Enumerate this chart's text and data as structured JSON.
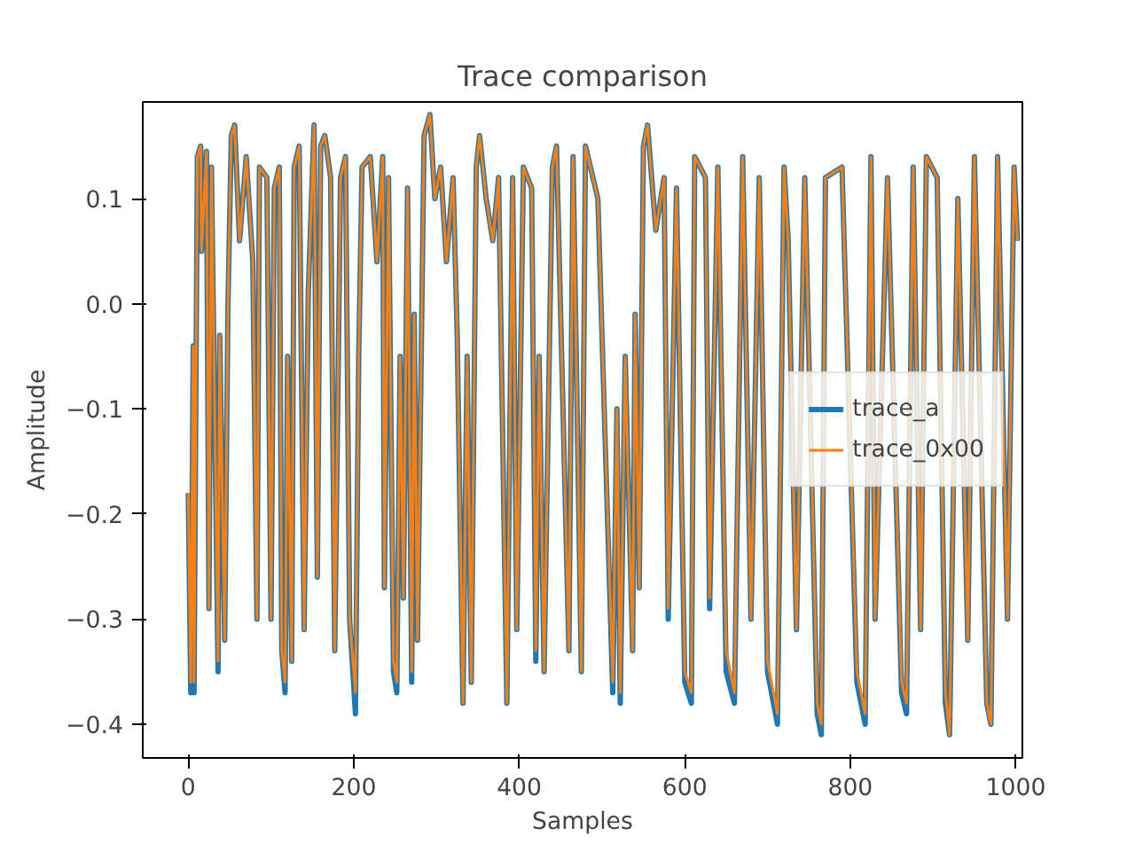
{
  "chart_data": {
    "type": "line",
    "title": "Trace comparison",
    "xlabel": "Samples",
    "ylabel": "Amplitude",
    "x": [
      0,
      3,
      6,
      7,
      11,
      15,
      16,
      22,
      25,
      28,
      36,
      38,
      44,
      48,
      52,
      56,
      62,
      70,
      78,
      83,
      86,
      95,
      100,
      104,
      110,
      113,
      117,
      120,
      125,
      128,
      134,
      140,
      145,
      152,
      156,
      160,
      165,
      172,
      177,
      184,
      190,
      195,
      202,
      206,
      210,
      220,
      228,
      235,
      237,
      242,
      248,
      252,
      256,
      260,
      265,
      270,
      273,
      277,
      285,
      292,
      298,
      305,
      312,
      320,
      325,
      332,
      337,
      342,
      348,
      352,
      360,
      368,
      375,
      385,
      392,
      397,
      405,
      415,
      420,
      424,
      430,
      440,
      445,
      460,
      465,
      475,
      480,
      495,
      513,
      518,
      522,
      528,
      537,
      540,
      545,
      550,
      555,
      565,
      575,
      580,
      590,
      600,
      608,
      612,
      625,
      630,
      640,
      650,
      660,
      670,
      680,
      690,
      700,
      712,
      720,
      725,
      735,
      745,
      760,
      765,
      770,
      790,
      808,
      818,
      825,
      830,
      845,
      862,
      868,
      876,
      885,
      892,
      905,
      915,
      920,
      930,
      942,
      950,
      965,
      970,
      978,
      990,
      998,
      1002
    ],
    "series": [
      {
        "name": "trace_a",
        "color": "#1f77b4",
        "values": [
          -0.18,
          -0.37,
          -0.04,
          -0.37,
          0.14,
          0.15,
          0.05,
          0.145,
          -0.29,
          0.13,
          -0.35,
          -0.03,
          -0.32,
          0.0,
          0.16,
          0.17,
          0.06,
          0.14,
          0.04,
          -0.3,
          0.13,
          0.12,
          -0.3,
          0.11,
          0.13,
          -0.33,
          -0.37,
          -0.05,
          -0.34,
          0.13,
          0.15,
          -0.31,
          0.01,
          0.17,
          -0.26,
          0.15,
          0.16,
          0.12,
          -0.33,
          0.12,
          0.14,
          -0.3,
          -0.39,
          -0.05,
          0.13,
          0.14,
          0.04,
          0.14,
          -0.27,
          0.12,
          -0.35,
          -0.37,
          -0.05,
          -0.28,
          0.11,
          -0.36,
          -0.01,
          -0.32,
          0.16,
          0.18,
          0.1,
          0.13,
          0.04,
          0.12,
          -0.03,
          -0.38,
          -0.05,
          -0.36,
          0.13,
          0.16,
          0.1,
          0.06,
          0.12,
          -0.38,
          0.12,
          -0.31,
          0.13,
          0.11,
          -0.34,
          -0.05,
          -0.35,
          0.13,
          0.15,
          -0.33,
          0.14,
          -0.35,
          0.15,
          0.1,
          -0.37,
          -0.1,
          -0.38,
          -0.05,
          -0.33,
          -0.01,
          -0.27,
          0.15,
          0.17,
          0.07,
          0.12,
          -0.3,
          0.11,
          -0.36,
          -0.38,
          0.14,
          0.12,
          -0.29,
          0.13,
          -0.35,
          -0.38,
          0.14,
          -0.3,
          0.12,
          -0.35,
          -0.4,
          0.13,
          0.06,
          -0.31,
          0.12,
          -0.39,
          -0.41,
          0.12,
          0.13,
          -0.36,
          -0.4,
          0.14,
          -0.3,
          0.12,
          -0.37,
          -0.39,
          0.13,
          -0.31,
          0.14,
          0.12,
          -0.38,
          -0.41,
          0.1,
          -0.32,
          0.14,
          -0.38,
          -0.4,
          0.14,
          -0.3,
          0.13,
          0.06
        ]
      },
      {
        "name": "trace_0x00",
        "color": "#ff7f0e",
        "values": [
          -0.18,
          -0.36,
          -0.04,
          -0.36,
          0.14,
          0.15,
          0.05,
          0.145,
          -0.29,
          0.13,
          -0.34,
          -0.03,
          -0.32,
          0.0,
          0.16,
          0.17,
          0.06,
          0.14,
          0.04,
          -0.3,
          0.13,
          0.12,
          -0.3,
          0.11,
          0.13,
          -0.33,
          -0.36,
          -0.05,
          -0.34,
          0.13,
          0.15,
          -0.31,
          0.01,
          0.17,
          -0.26,
          0.15,
          0.16,
          0.12,
          -0.33,
          0.12,
          0.14,
          -0.3,
          -0.37,
          -0.05,
          0.13,
          0.14,
          0.04,
          0.14,
          -0.27,
          0.12,
          -0.34,
          -0.36,
          -0.05,
          -0.28,
          0.11,
          -0.35,
          -0.01,
          -0.32,
          0.16,
          0.18,
          0.1,
          0.13,
          0.04,
          0.12,
          -0.03,
          -0.38,
          -0.05,
          -0.36,
          0.13,
          0.16,
          0.1,
          0.06,
          0.12,
          -0.38,
          0.12,
          -0.31,
          0.13,
          0.11,
          -0.33,
          -0.05,
          -0.35,
          0.13,
          0.15,
          -0.33,
          0.14,
          -0.35,
          0.15,
          0.1,
          -0.36,
          -0.1,
          -0.37,
          -0.05,
          -0.33,
          -0.01,
          -0.27,
          0.15,
          0.17,
          0.07,
          0.12,
          -0.29,
          0.11,
          -0.35,
          -0.37,
          0.14,
          0.12,
          -0.28,
          0.13,
          -0.33,
          -0.37,
          0.14,
          -0.3,
          0.12,
          -0.34,
          -0.39,
          0.13,
          0.06,
          -0.31,
          0.12,
          -0.38,
          -0.4,
          0.12,
          0.13,
          -0.35,
          -0.39,
          0.14,
          -0.3,
          0.12,
          -0.36,
          -0.38,
          0.13,
          -0.31,
          0.14,
          0.12,
          -0.37,
          -0.41,
          0.1,
          -0.32,
          0.14,
          -0.38,
          -0.4,
          0.14,
          -0.3,
          0.13,
          0.06
        ]
      }
    ],
    "xlim": [
      -55,
      1008
    ],
    "ylim": [
      -0.432,
      0.192
    ],
    "xticks": [
      0,
      200,
      400,
      600,
      800,
      1000
    ],
    "yticks": [
      {
        "value": -0.4,
        "label": "−0.4"
      },
      {
        "value": -0.3,
        "label": "−0.3"
      },
      {
        "value": -0.2,
        "label": "−0.2"
      },
      {
        "value": -0.1,
        "label": "−0.1"
      },
      {
        "value": 0.0,
        "label": "0.0"
      },
      {
        "value": 0.1,
        "label": "0.1"
      }
    ],
    "legend": "center right",
    "grid": false,
    "marker": "none",
    "line_style": "solid"
  }
}
